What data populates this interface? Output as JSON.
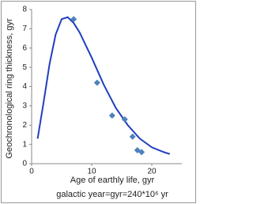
{
  "chart_data": {
    "type": "scatter",
    "x_label": "Age of earthly life, gyr",
    "y_label": "Geochronological ring thickness, gyr",
    "annotation": "galactic year=gyr=240*10⁶ yr",
    "xlim": [
      0,
      25
    ],
    "xticks": [
      0,
      10,
      20
    ],
    "ylim": [
      0,
      8
    ],
    "yticks": [
      0,
      1,
      2,
      3,
      4,
      5,
      6,
      7,
      8
    ],
    "points": {
      "color": "#4f81bd",
      "x": [
        7.0,
        10.9,
        13.4,
        15.5,
        16.8,
        17.6,
        18.3
      ],
      "y": [
        7.5,
        4.2,
        2.5,
        2.3,
        1.4,
        0.7,
        0.6
      ]
    },
    "curve": {
      "color": "#1f3fbf",
      "x": [
        1,
        2,
        3,
        4,
        5,
        6,
        7,
        8,
        10,
        12,
        14,
        16,
        18,
        20,
        22,
        23
      ],
      "y": [
        1.3,
        3.2,
        5.2,
        6.7,
        7.5,
        7.6,
        7.3,
        6.8,
        5.5,
        4.1,
        2.9,
        2.0,
        1.3,
        0.85,
        0.6,
        0.5
      ]
    }
  }
}
